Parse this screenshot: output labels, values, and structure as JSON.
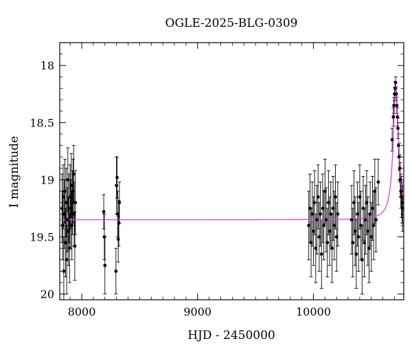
{
  "chart_data": {
    "type": "scatter",
    "title": "OGLE-2025-BLG-0309",
    "xlabel": "HJD - 2450000",
    "ylabel": "I magnitude",
    "xlim": [
      7810,
      10780
    ],
    "ylim": [
      17.8,
      20.05
    ],
    "y_inverted": true,
    "x_ticks": [
      8000,
      9000,
      10000
    ],
    "y_ticks": [
      18,
      18.5,
      19,
      19.5,
      20
    ],
    "grid": false,
    "colors": {
      "points": "#000000",
      "error_bars": "#000000",
      "model": "#e040e0"
    },
    "series": [
      {
        "kind": "points_with_error_bars",
        "points": [
          {
            "x": 7830,
            "y": 19.25,
            "err": 0.3
          },
          {
            "x": 7835,
            "y": 19.4,
            "err": 0.3
          },
          {
            "x": 7840,
            "y": 19.15,
            "err": 0.28
          },
          {
            "x": 7845,
            "y": 19.8,
            "err": 0.3
          },
          {
            "x": 7850,
            "y": 19.3,
            "err": 0.3
          },
          {
            "x": 7855,
            "y": 19.1,
            "err": 0.28
          },
          {
            "x": 7860,
            "y": 19.55,
            "err": 0.3
          },
          {
            "x": 7865,
            "y": 19.2,
            "err": 0.3
          },
          {
            "x": 7870,
            "y": 19.7,
            "err": 0.3
          },
          {
            "x": 7875,
            "y": 19.35,
            "err": 0.28
          },
          {
            "x": 7880,
            "y": 19.0,
            "err": 0.28
          },
          {
            "x": 7885,
            "y": 19.45,
            "err": 0.3
          },
          {
            "x": 7890,
            "y": 19.25,
            "err": 0.3
          },
          {
            "x": 7895,
            "y": 19.6,
            "err": 0.3
          },
          {
            "x": 7900,
            "y": 19.15,
            "err": 0.28
          },
          {
            "x": 7905,
            "y": 19.3,
            "err": 0.3
          },
          {
            "x": 7910,
            "y": 19.05,
            "err": 0.28
          },
          {
            "x": 7915,
            "y": 19.4,
            "err": 0.3
          },
          {
            "x": 7920,
            "y": 19.2,
            "err": 0.28
          },
          {
            "x": 7925,
            "y": 19.1,
            "err": 0.28
          },
          {
            "x": 7930,
            "y": 18.95,
            "err": 0.25
          },
          {
            "x": 7935,
            "y": 19.3,
            "err": 0.28
          },
          {
            "x": 7940,
            "y": 19.58,
            "err": 0.3
          },
          {
            "x": 7945,
            "y": 19.2,
            "err": 0.28
          },
          {
            "x": 8190,
            "y": 19.28,
            "err": 0.15
          },
          {
            "x": 8195,
            "y": 19.5,
            "err": 0.2
          },
          {
            "x": 8200,
            "y": 19.75,
            "err": 0.25
          },
          {
            "x": 8295,
            "y": 19.8,
            "err": 0.2
          },
          {
            "x": 8300,
            "y": 19.05,
            "err": 0.25
          },
          {
            "x": 8305,
            "y": 18.98,
            "err": 0.18
          },
          {
            "x": 8310,
            "y": 19.3,
            "err": 0.2
          },
          {
            "x": 8315,
            "y": 19.52,
            "err": 0.2
          },
          {
            "x": 8320,
            "y": 19.38,
            "err": 0.2
          },
          {
            "x": 8325,
            "y": 19.2,
            "err": 0.18
          },
          {
            "x": 9960,
            "y": 19.4,
            "err": 0.3
          },
          {
            "x": 9970,
            "y": 19.25,
            "err": 0.3
          },
          {
            "x": 9980,
            "y": 19.55,
            "err": 0.3
          },
          {
            "x": 9990,
            "y": 19.3,
            "err": 0.28
          },
          {
            "x": 10000,
            "y": 19.45,
            "err": 0.3
          },
          {
            "x": 10010,
            "y": 19.2,
            "err": 0.28
          },
          {
            "x": 10020,
            "y": 19.6,
            "err": 0.3
          },
          {
            "x": 10030,
            "y": 19.35,
            "err": 0.3
          },
          {
            "x": 10040,
            "y": 19.15,
            "err": 0.28
          },
          {
            "x": 10050,
            "y": 19.5,
            "err": 0.3
          },
          {
            "x": 10060,
            "y": 19.3,
            "err": 0.28
          },
          {
            "x": 10070,
            "y": 19.65,
            "err": 0.3
          },
          {
            "x": 10080,
            "y": 19.25,
            "err": 0.3
          },
          {
            "x": 10090,
            "y": 19.4,
            "err": 0.3
          },
          {
            "x": 10100,
            "y": 19.1,
            "err": 0.28
          },
          {
            "x": 10110,
            "y": 19.35,
            "err": 0.28
          },
          {
            "x": 10120,
            "y": 19.55,
            "err": 0.3
          },
          {
            "x": 10130,
            "y": 19.2,
            "err": 0.28
          },
          {
            "x": 10140,
            "y": 19.45,
            "err": 0.3
          },
          {
            "x": 10150,
            "y": 19.3,
            "err": 0.28
          },
          {
            "x": 10160,
            "y": 19.6,
            "err": 0.3
          },
          {
            "x": 10170,
            "y": 19.25,
            "err": 0.28
          },
          {
            "x": 10180,
            "y": 19.4,
            "err": 0.3
          },
          {
            "x": 10190,
            "y": 19.15,
            "err": 0.28
          },
          {
            "x": 10200,
            "y": 19.5,
            "err": 0.3
          },
          {
            "x": 10210,
            "y": 19.3,
            "err": 0.28
          },
          {
            "x": 10330,
            "y": 19.35,
            "err": 0.3
          },
          {
            "x": 10340,
            "y": 19.55,
            "err": 0.3
          },
          {
            "x": 10350,
            "y": 19.2,
            "err": 0.28
          },
          {
            "x": 10360,
            "y": 19.45,
            "err": 0.3
          },
          {
            "x": 10370,
            "y": 19.65,
            "err": 0.3
          },
          {
            "x": 10380,
            "y": 19.3,
            "err": 0.28
          },
          {
            "x": 10390,
            "y": 19.5,
            "err": 0.3
          },
          {
            "x": 10400,
            "y": 19.15,
            "err": 0.28
          },
          {
            "x": 10410,
            "y": 19.4,
            "err": 0.3
          },
          {
            "x": 10420,
            "y": 19.7,
            "err": 0.3
          },
          {
            "x": 10430,
            "y": 19.25,
            "err": 0.28
          },
          {
            "x": 10440,
            "y": 19.55,
            "err": 0.3
          },
          {
            "x": 10450,
            "y": 19.35,
            "err": 0.3
          },
          {
            "x": 10460,
            "y": 19.2,
            "err": 0.28
          },
          {
            "x": 10470,
            "y": 19.45,
            "err": 0.3
          },
          {
            "x": 10480,
            "y": 19.6,
            "err": 0.3
          },
          {
            "x": 10490,
            "y": 19.3,
            "err": 0.28
          },
          {
            "x": 10500,
            "y": 19.5,
            "err": 0.3
          },
          {
            "x": 10510,
            "y": 19.25,
            "err": 0.28
          },
          {
            "x": 10520,
            "y": 19.4,
            "err": 0.3
          },
          {
            "x": 10530,
            "y": 19.1,
            "err": 0.28
          },
          {
            "x": 10540,
            "y": 19.35,
            "err": 0.28
          },
          {
            "x": 10560,
            "y": 19.02,
            "err": 0.2
          },
          {
            "x": 10680,
            "y": 18.65,
            "err": 0.1
          },
          {
            "x": 10690,
            "y": 18.45,
            "err": 0.08
          },
          {
            "x": 10695,
            "y": 18.35,
            "err": 0.07
          },
          {
            "x": 10700,
            "y": 18.25,
            "err": 0.06
          },
          {
            "x": 10705,
            "y": 18.2,
            "err": 0.06
          },
          {
            "x": 10710,
            "y": 18.15,
            "err": 0.05
          },
          {
            "x": 10715,
            "y": 18.25,
            "err": 0.06
          },
          {
            "x": 10720,
            "y": 18.35,
            "err": 0.07
          },
          {
            "x": 10725,
            "y": 18.45,
            "err": 0.08
          },
          {
            "x": 10730,
            "y": 18.55,
            "err": 0.09
          },
          {
            "x": 10735,
            "y": 18.7,
            "err": 0.1
          },
          {
            "x": 10740,
            "y": 18.8,
            "err": 0.12
          },
          {
            "x": 10745,
            "y": 18.9,
            "err": 0.12
          },
          {
            "x": 10750,
            "y": 19.0,
            "err": 0.15
          },
          {
            "x": 10755,
            "y": 19.1,
            "err": 0.15
          },
          {
            "x": 10760,
            "y": 19.15,
            "err": 0.18
          },
          {
            "x": 10765,
            "y": 19.2,
            "err": 0.18
          },
          {
            "x": 10770,
            "y": 19.25,
            "err": 0.2
          }
        ]
      },
      {
        "kind": "model_curve",
        "baseline": 19.35,
        "peak": 18.18,
        "t0": 10712,
        "tE": 28
      }
    ]
  }
}
